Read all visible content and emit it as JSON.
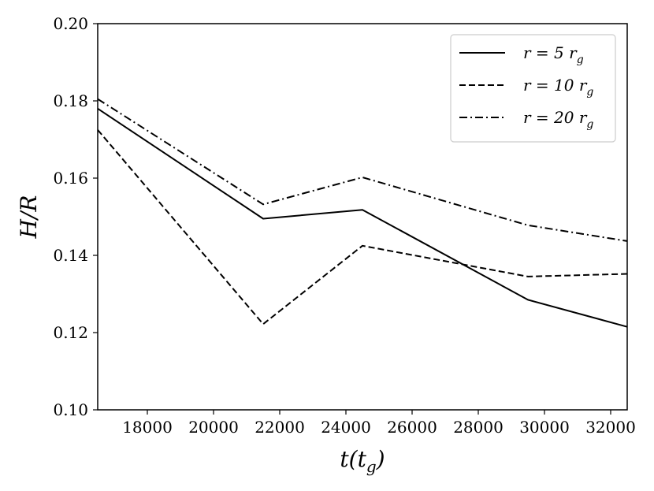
{
  "chart_data": {
    "type": "line",
    "xlabel": "t(t_g)",
    "ylabel": "H/R",
    "xlim": [
      16500,
      32500
    ],
    "ylim": [
      0.1,
      0.2
    ],
    "x_ticks": [
      18000,
      20000,
      22000,
      24000,
      26000,
      28000,
      30000,
      32000
    ],
    "y_ticks": [
      0.1,
      0.12,
      0.14,
      0.16,
      0.18,
      0.2
    ],
    "x_tick_labels": [
      "18000",
      "20000",
      "22000",
      "24000",
      "26000",
      "28000",
      "30000",
      "32000"
    ],
    "y_tick_labels": [
      "0.10",
      "0.12",
      "0.14",
      "0.16",
      "0.18",
      "0.20"
    ],
    "grid": false,
    "legend_position": "top-right",
    "x": [
      16500,
      21500,
      24500,
      29500,
      32500
    ],
    "series": [
      {
        "name": "r = 5 r_g",
        "dash": "solid",
        "values": [
          0.178,
          0.1495,
          0.1518,
          0.1285,
          0.1215
        ]
      },
      {
        "name": "r = 10 r_g",
        "dash": "dashed",
        "values": [
          0.1725,
          0.1222,
          0.1425,
          0.1345,
          0.1352
        ]
      },
      {
        "name": "r = 20 r_g",
        "dash": "dashdot",
        "values": [
          0.1805,
          0.1532,
          0.1602,
          0.1478,
          0.1437
        ]
      }
    ]
  }
}
